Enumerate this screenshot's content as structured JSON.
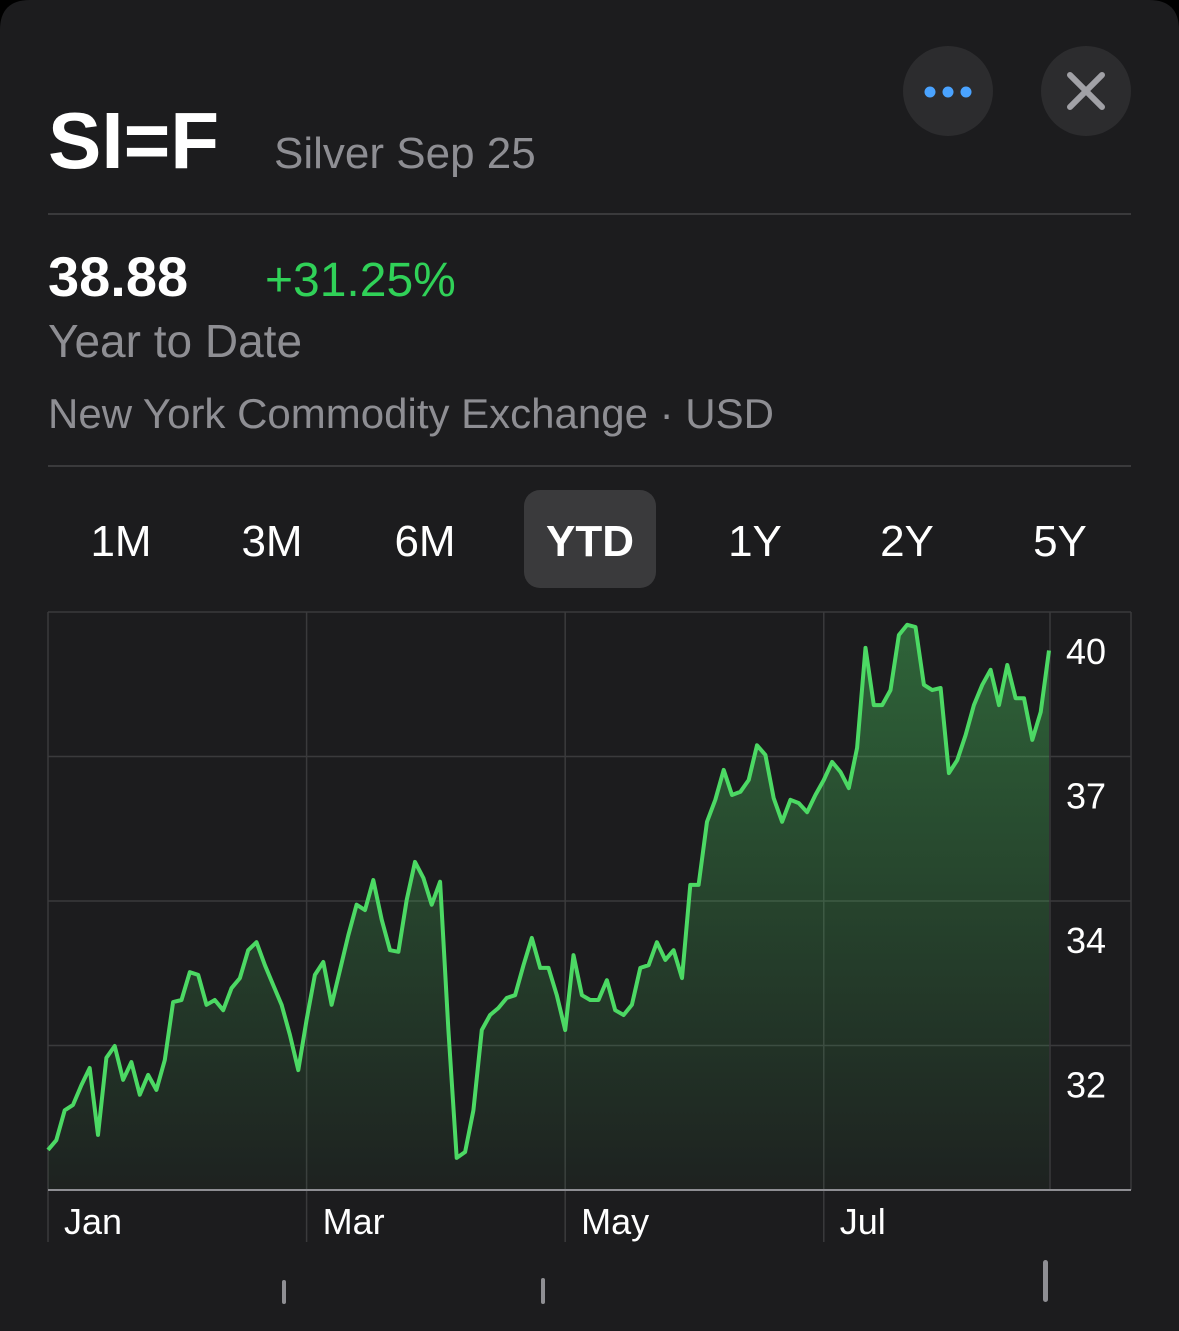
{
  "header": {
    "symbol": "SI=F",
    "name": "Silver Sep 25"
  },
  "quote": {
    "price": "38.88",
    "change": "+31.25%",
    "period": "Year to Date",
    "exchange": "New York Commodity Exchange · USD"
  },
  "ranges": [
    "1M",
    "3M",
    "6M",
    "YTD",
    "1Y",
    "2Y",
    "5Y"
  ],
  "selected_range": 3,
  "chart_data": {
    "type": "line",
    "color": "#4cd964",
    "grid": true,
    "categories": [
      "Jan",
      null,
      null,
      null,
      null,
      null,
      null,
      null,
      null,
      null,
      null,
      null,
      null,
      null,
      null,
      null,
      null,
      null,
      null,
      null,
      null,
      null,
      null,
      null,
      null,
      null,
      null,
      null,
      null,
      null,
      null,
      "Mar",
      null,
      null,
      null,
      null,
      null,
      null,
      null,
      null,
      null,
      null,
      null,
      null,
      null,
      null,
      null,
      null,
      null,
      null,
      null,
      null,
      null,
      null,
      null,
      null,
      null,
      null,
      null,
      null,
      null,
      null,
      "May",
      null,
      null,
      null,
      null,
      null,
      null,
      null,
      null,
      null,
      null,
      null,
      null,
      null,
      null,
      null,
      null,
      null,
      null,
      null,
      null,
      null,
      null,
      null,
      null,
      null,
      null,
      null,
      null,
      null,
      null,
      "Jul",
      null,
      null,
      null,
      null,
      null,
      null,
      null,
      null,
      null,
      null,
      null,
      null,
      null,
      null,
      null,
      null,
      null,
      null,
      null,
      null,
      null,
      null,
      null,
      null,
      null,
      null,
      null
    ],
    "values": [
      29.55,
      29.73,
      30.29,
      30.39,
      30.76,
      31.08,
      29.83,
      31.27,
      31.49,
      30.86,
      31.19,
      30.58,
      30.95,
      30.67,
      31.23,
      32.31,
      32.35,
      32.87,
      32.82,
      32.26,
      32.35,
      32.16,
      32.57,
      32.76,
      33.28,
      33.43,
      33.0,
      32.63,
      32.26,
      31.7,
      31.04,
      31.98,
      32.82,
      33.06,
      32.26,
      32.91,
      33.56,
      34.13,
      34.03,
      34.59,
      33.85,
      33.28,
      33.25,
      34.22,
      34.93,
      34.63,
      34.13,
      34.56,
      31.79,
      29.4,
      29.51,
      30.29,
      31.79,
      32.07,
      32.2,
      32.39,
      32.44,
      33.0,
      33.51,
      32.95,
      32.95,
      32.44,
      31.79,
      33.19,
      32.44,
      32.35,
      32.35,
      32.72,
      32.16,
      32.07,
      32.26,
      32.95,
      33.0,
      33.43,
      33.1,
      33.28,
      32.76,
      34.5,
      34.5,
      35.68,
      36.09,
      36.65,
      36.18,
      36.24,
      36.46,
      37.11,
      36.93,
      36.12,
      35.68,
      36.09,
      36.03,
      35.86,
      36.18,
      36.46,
      36.8,
      36.61,
      36.31,
      37.06,
      38.93,
      37.86,
      37.86,
      38.14,
      39.17,
      39.36,
      39.32,
      38.24,
      38.14,
      38.18,
      36.59,
      36.83,
      37.3,
      37.86,
      38.24,
      38.52,
      37.86,
      38.61,
      37.99,
      37.99,
      37.21,
      37.73,
      38.88
    ],
    "ylim": [
      28.8,
      39.6
    ],
    "yticks": [
      {
        "value": 39.6,
        "label": "40"
      },
      {
        "value": 36.9,
        "label": "37"
      },
      {
        "value": 34.2,
        "label": "34"
      },
      {
        "value": 31.5,
        "label": "32"
      }
    ]
  }
}
